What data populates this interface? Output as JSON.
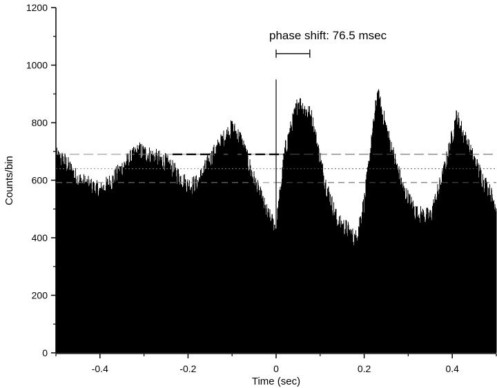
{
  "chart_data": {
    "type": "bar",
    "title": "",
    "xlabel": "Time (sec)",
    "ylabel": "Counts/bin",
    "xlim": [
      -0.5,
      0.5
    ],
    "ylim": [
      0,
      1200
    ],
    "x_ticks": [
      -0.4,
      -0.2,
      0,
      0.2,
      0.4
    ],
    "x_tick_labels": [
      "-0.4",
      "-0.2",
      "0",
      "0.2",
      "0.4"
    ],
    "y_ticks": [
      0,
      200,
      400,
      600,
      800,
      1000,
      1200
    ],
    "y_tick_labels": [
      "0",
      "200",
      "400",
      "600",
      "800",
      "1000",
      "1200"
    ],
    "grid": false,
    "legend": "none",
    "bar_color": "#000000",
    "envelope": {
      "x": [
        -0.5,
        -0.48,
        -0.45,
        -0.42,
        -0.4,
        -0.37,
        -0.34,
        -0.31,
        -0.28,
        -0.25,
        -0.22,
        -0.2,
        -0.18,
        -0.15,
        -0.12,
        -0.1,
        -0.08,
        -0.05,
        -0.02,
        0.0,
        0.02,
        0.05,
        0.08,
        0.11,
        0.14,
        0.16,
        0.18,
        0.2,
        0.23,
        0.26,
        0.29,
        0.32,
        0.35,
        0.38,
        0.41,
        0.44,
        0.47,
        0.5
      ],
      "y": [
        680,
        665,
        600,
        575,
        560,
        600,
        660,
        700,
        680,
        660,
        610,
        580,
        585,
        670,
        740,
        780,
        740,
        600,
        480,
        430,
        700,
        870,
        820,
        600,
        450,
        430,
        390,
        520,
        900,
        720,
        560,
        480,
        470,
        620,
        820,
        700,
        600,
        510
      ]
    },
    "reference_lines": [
      {
        "y": 690,
        "style": "long-dash"
      },
      {
        "y": 640,
        "style": "dotted"
      },
      {
        "y": 592,
        "style": "dash"
      }
    ],
    "vertical_line": {
      "x": 0,
      "y_top": 950
    },
    "annotation": {
      "text": "phase shift: 76.5 msec",
      "bracket_x": [
        0,
        0.0765
      ],
      "bracket_y": 1040
    }
  }
}
